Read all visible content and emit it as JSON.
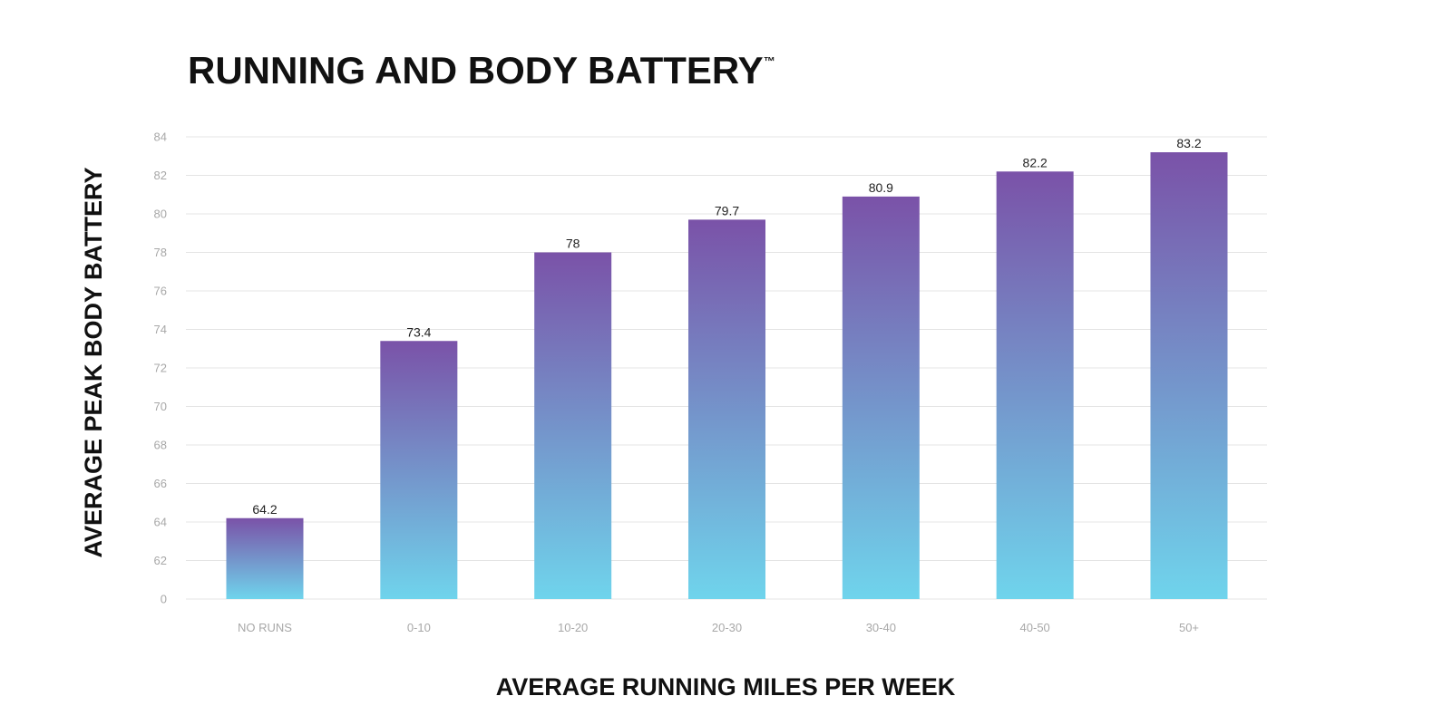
{
  "chart_data": {
    "type": "bar",
    "title": "RUNNING AND BODY BATTERY",
    "title_mark": "™",
    "xlabel": "AVERAGE RUNNING MILES PER WEEK",
    "ylabel": "AVERAGE PEAK BODY BATTERY",
    "categories": [
      "NO RUNS",
      "0-10",
      "10-20",
      "20-30",
      "30-40",
      "40-50",
      "50+"
    ],
    "values": [
      64.2,
      73.4,
      78,
      79.7,
      80.9,
      82.2,
      83.2
    ],
    "value_labels": [
      "64.2",
      "73.4",
      "78",
      "79.7",
      "80.9",
      "82.2",
      "83.2"
    ],
    "y_ticks": [
      "0",
      "62",
      "64",
      "66",
      "68",
      "70",
      "72",
      "74",
      "76",
      "78",
      "80",
      "82",
      "84"
    ],
    "ylim": [
      60,
      84
    ],
    "y_axis_break": "bottom tick labeled 0, axis otherwise runs 62 to 84",
    "grid": true,
    "legend": "none",
    "colors": {
      "bar_top": "#7a52a8",
      "bar_bottom": "#6fd4ec",
      "grid": "#e4e4e4",
      "tick_text": "#a8a8a8",
      "title_text": "#111111"
    }
  }
}
